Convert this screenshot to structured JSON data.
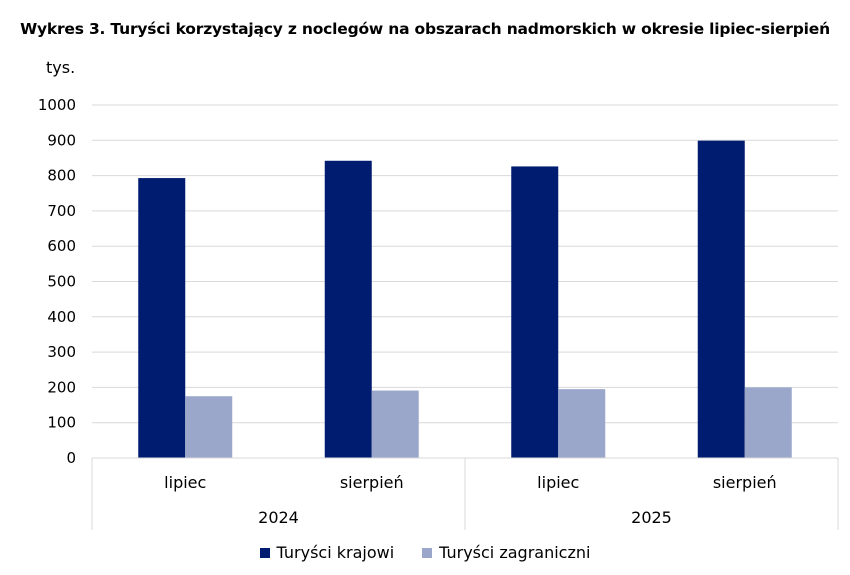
{
  "chart_data": {
    "type": "bar",
    "title": "Wykres 3. Turyści korzystający z noclegów na obszarach nadmorskich w okresie lipiec-sierpień",
    "ylabel": "tys.",
    "ylim": [
      0,
      1000
    ],
    "yticks": [
      "0",
      "100",
      "200",
      "300",
      "400",
      "500",
      "600",
      "700",
      "800",
      "900",
      "1000"
    ],
    "categories": [
      "lipiec",
      "sierpień",
      "lipiec",
      "sierpień"
    ],
    "groups": [
      "2024",
      "2025"
    ],
    "series": [
      {
        "name": "Turyści krajowi",
        "color": "#001c71",
        "values": [
          793,
          842,
          826,
          899
        ]
      },
      {
        "name": "Turyści zagraniczni",
        "color": "#9ba6cb",
        "values": [
          175,
          191,
          195,
          200
        ]
      }
    ],
    "grid": true,
    "legend_position": "bottom"
  }
}
